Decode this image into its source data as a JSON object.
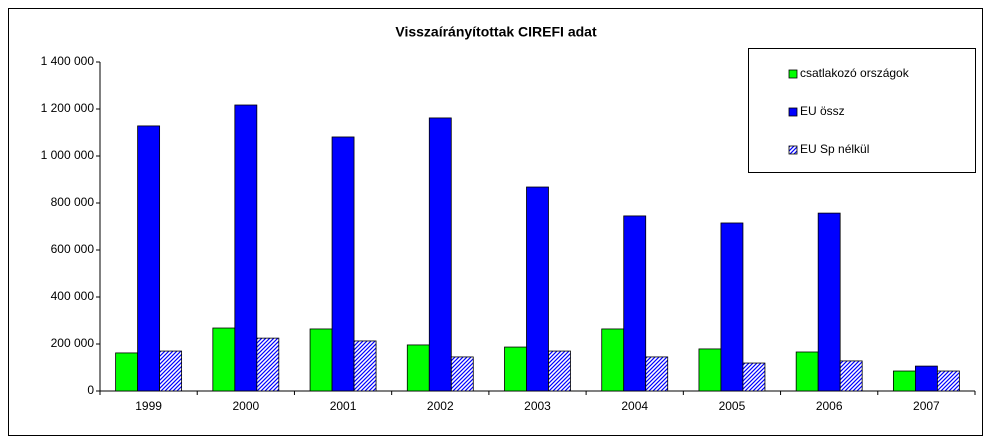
{
  "chart_data": {
    "type": "bar",
    "title": "Visszaírányítottak CIREFI adat",
    "categories": [
      "1999",
      "2000",
      "2001",
      "2002",
      "2003",
      "2004",
      "2005",
      "2006",
      "2007"
    ],
    "series": [
      {
        "name": "csatlakozó országok",
        "color": "#00ff00",
        "values": [
          162000,
          268000,
          264000,
          196000,
          187000,
          264000,
          179000,
          166000,
          85000
        ]
      },
      {
        "name": "EU össz",
        "color": "#0000ff",
        "values": [
          1128000,
          1217000,
          1081000,
          1162000,
          868000,
          745000,
          715000,
          757000,
          106000
        ]
      },
      {
        "name": "EU Sp nélkül",
        "color": "#0000ff",
        "pattern": "diagonal",
        "values": [
          170000,
          225000,
          213000,
          145000,
          170000,
          145000,
          119000,
          128000,
          85000
        ]
      }
    ],
    "ylim": [
      0,
      1400000
    ],
    "yticks": [
      0,
      {
        "value": 200000,
        "label": "200 000"
      },
      {
        "value": 400000,
        "label": "400 000"
      },
      {
        "value": 600000,
        "label": "600 000"
      },
      {
        "value": 800000,
        "label": "800 000"
      },
      {
        "value": 1000000,
        "label": "1 000 000"
      },
      {
        "value": 1200000,
        "label": "1 200 000"
      },
      {
        "value": 1400000,
        "label": "1 400 000"
      }
    ],
    "grid": false,
    "legend": "top-right"
  }
}
